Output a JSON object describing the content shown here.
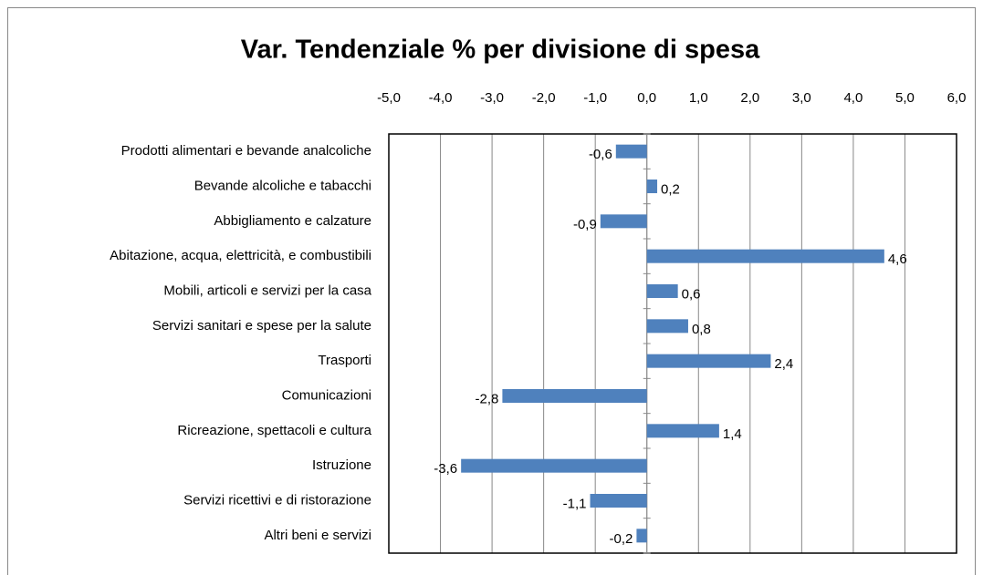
{
  "chart_data": {
    "type": "barh",
    "title": "Var. Tendenziale % per divisione di spesa",
    "categories": [
      "Prodotti alimentari e bevande analcoliche",
      "Bevande alcoliche e tabacchi",
      "Abbigliamento e calzature",
      "Abitazione, acqua, elettricità, e combustibili",
      "Mobili, articoli e servizi per la casa",
      "Servizi sanitari e spese per la salute",
      "Trasporti",
      "Comunicazioni",
      "Ricreazione, spettacoli e cultura",
      "Istruzione",
      "Servizi ricettivi e di ristorazione",
      "Altri beni e servizi"
    ],
    "values": [
      -0.6,
      0.2,
      -0.9,
      4.6,
      0.6,
      0.8,
      2.4,
      -2.8,
      1.4,
      -3.6,
      -1.1,
      -0.2
    ],
    "value_labels": [
      "-0,6",
      "0,2",
      "-0,9",
      "4,6",
      "0,6",
      "0,8",
      "2,4",
      "-2,8",
      "1,4",
      "-3,6",
      "-1,1",
      "-0,2"
    ],
    "color": "#4f81bd",
    "xlim": [
      -5,
      6
    ],
    "xticks": [
      {
        "value": -5,
        "label": "-5,0"
      },
      {
        "value": -4,
        "label": "-4,0"
      },
      {
        "value": -3,
        "label": "-3,0"
      },
      {
        "value": -2,
        "label": "-2,0"
      },
      {
        "value": -1,
        "label": "-1,0"
      },
      {
        "value": 0,
        "label": "0,0"
      },
      {
        "value": 1,
        "label": "1,0"
      },
      {
        "value": 2,
        "label": "2,0"
      },
      {
        "value": 3,
        "label": "3,0"
      },
      {
        "value": 4,
        "label": "4,0"
      },
      {
        "value": 5,
        "label": "5,0"
      },
      {
        "value": 6,
        "label": "6,0"
      }
    ],
    "grid": true
  }
}
